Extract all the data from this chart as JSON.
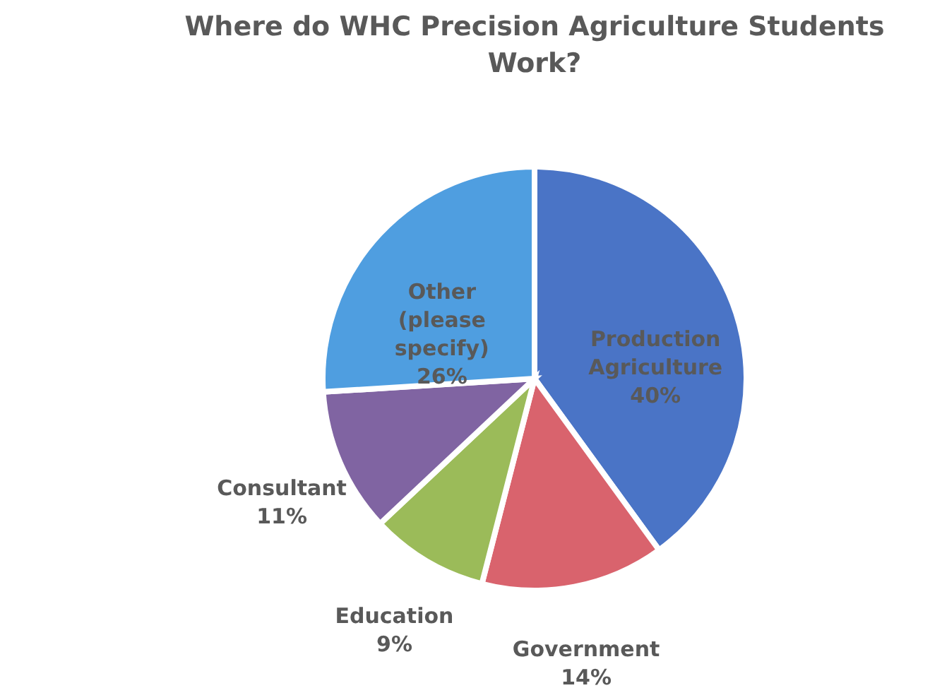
{
  "chart_data": {
    "type": "pie",
    "title": "Where do WHC Precision Agriculture Students Work?",
    "categories": [
      "Production Agriculture",
      "Government",
      "Education",
      "Consultant",
      "Other (please specify)"
    ],
    "values": [
      40,
      14,
      9,
      11,
      26
    ],
    "value_labels": [
      "40%",
      "14%",
      "9%",
      "11%",
      "26%"
    ],
    "colors": [
      "#4a74c6",
      "#d9636d",
      "#9bbb59",
      "#8064a2",
      "#4f9ee0"
    ],
    "legend": false
  }
}
